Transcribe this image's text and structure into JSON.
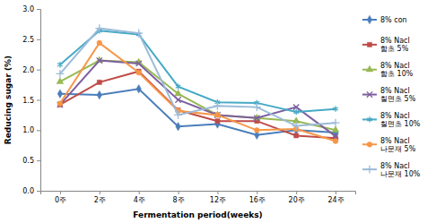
{
  "chart_data": {
    "type": "line",
    "x_label": "Fermentation period(weeks)",
    "y_label": "Reducing sugar (%)",
    "categories": [
      "0주",
      "2주",
      "4주",
      "8주",
      "12주",
      "16주",
      "20주",
      "24주"
    ],
    "ylim": [
      0,
      3
    ],
    "yticks": [
      {
        "value": 0,
        "label": "0.0"
      },
      0.5,
      {
        "value": 1,
        "label": "1.0"
      },
      1.5,
      {
        "value": 2,
        "label": "2.0"
      },
      2.5,
      {
        "value": 3,
        "label": "3.0"
      }
    ],
    "grid": false,
    "legend": "right",
    "series": [
      {
        "name": "8% con",
        "color": "#4a7ebb",
        "marker": "diamond",
        "values": [
          1.6,
          1.58,
          1.68,
          1.06,
          1.1,
          0.92,
          1.0,
          0.96
        ]
      },
      {
        "name": "8% Nacl 함초 5%",
        "color": "#be4b48",
        "marker": "square",
        "values": [
          1.42,
          1.79,
          1.97,
          1.33,
          1.15,
          1.15,
          0.91,
          0.87
        ]
      },
      {
        "name": "8% Nacl 함초 10%",
        "color": "#98b954",
        "marker": "triangle",
        "values": [
          1.8,
          2.15,
          2.12,
          1.6,
          1.25,
          1.2,
          1.15,
          1.0
        ]
      },
      {
        "name": "8% Nacl 칠면초 5%",
        "color": "#7d60a0",
        "marker": "x",
        "values": [
          1.42,
          2.15,
          2.1,
          1.5,
          1.25,
          1.2,
          1.38,
          0.9
        ]
      },
      {
        "name": "8% Nacl 칠면초 10%",
        "color": "#46aac5",
        "marker": "asterisk",
        "values": [
          2.08,
          2.64,
          2.58,
          1.72,
          1.46,
          1.45,
          1.3,
          1.35
        ]
      },
      {
        "name": "8% Nacl 나문재 5%",
        "color": "#f79646",
        "marker": "circle",
        "values": [
          1.44,
          2.44,
          1.95,
          1.32,
          1.25,
          1.0,
          1.02,
          0.82
        ]
      },
      {
        "name": "8% Nacl 나문재 10%",
        "color": "#9bbbd9",
        "marker": "plus",
        "values": [
          1.93,
          2.68,
          2.6,
          1.25,
          1.4,
          1.38,
          1.07,
          1.12
        ]
      }
    ]
  }
}
